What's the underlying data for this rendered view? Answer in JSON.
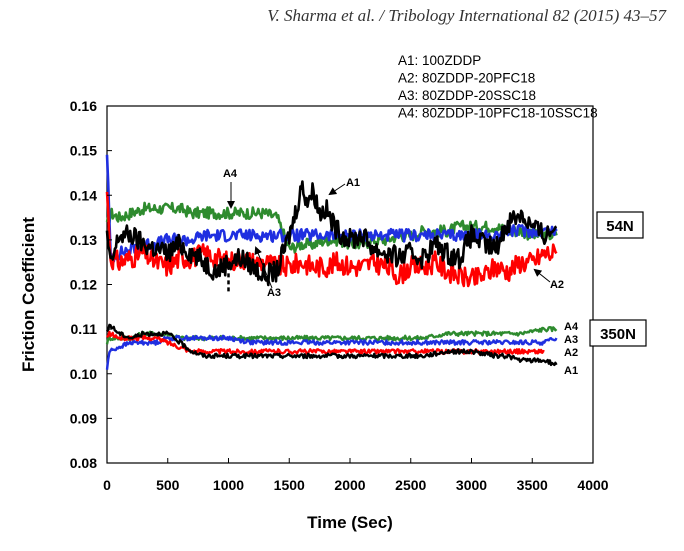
{
  "header": {
    "citation": "V. Sharma et al. / Tribology International 82 (2015) 43–57"
  },
  "chart_data": {
    "type": "line",
    "xlabel": "Time (Sec)",
    "ylabel": "Friction Coefficient",
    "xlim": [
      0,
      4000
    ],
    "ylim": [
      0.08,
      0.16
    ],
    "xticks": [
      "0",
      "500",
      "1000",
      "1500",
      "2000",
      "2500",
      "3000",
      "3500",
      "4000"
    ],
    "yticks": [
      "0.08",
      "0.09",
      "0.10",
      "0.11",
      "0.12",
      "0.13",
      "0.14",
      "0.15",
      "0.16"
    ],
    "grid": false,
    "legend": {
      "placement": "top-right",
      "entries": [
        "A1: 100ZDDP",
        "A2: 80ZDDP-20PFC18",
        "A3: 80ZDDP-20SSC18",
        "A4: 80ZDDP-10PFC18-10SSC18"
      ]
    },
    "load_labels": [
      "54N",
      "350N"
    ],
    "series_colors": {
      "A1": "#000000",
      "A2": "#ff0000",
      "A3": "#1f2fe0",
      "A4": "#2e8b2e"
    },
    "groups": [
      {
        "load": "54N",
        "series": [
          {
            "name": "A1",
            "x": [
              0,
              30,
              100,
              200,
              300,
              400,
              500,
              600,
              700,
              800,
              900,
              1000,
              1100,
              1200,
              1300,
              1400,
              1500,
              1550,
              1600,
              1650,
              1700,
              1750,
              1800,
              1850,
              1900,
              2000,
              2100,
              2200,
              2300,
              2400,
              2500,
              2600,
              2700,
              2800,
              2900,
              3000,
              3100,
              3200,
              3300,
              3400,
              3500,
              3600,
              3700
            ],
            "y": [
              0.131,
              0.124,
              0.131,
              0.131,
              0.129,
              0.128,
              0.127,
              0.129,
              0.127,
              0.125,
              0.123,
              0.125,
              0.126,
              0.124,
              0.122,
              0.123,
              0.131,
              0.136,
              0.142,
              0.139,
              0.141,
              0.136,
              0.137,
              0.134,
              0.132,
              0.13,
              0.131,
              0.128,
              0.127,
              0.126,
              0.127,
              0.126,
              0.129,
              0.127,
              0.126,
              0.131,
              0.129,
              0.128,
              0.134,
              0.136,
              0.133,
              0.131,
              0.133
            ]
          },
          {
            "name": "A2",
            "x": [
              0,
              30,
              100,
              200,
              300,
              400,
              500,
              600,
              700,
              800,
              900,
              1000,
              1100,
              1200,
              1300,
              1400,
              1500,
              1600,
              1700,
              1800,
              1900,
              2000,
              2100,
              2200,
              2300,
              2400,
              2500,
              2600,
              2700,
              2800,
              2900,
              3000,
              3100,
              3200,
              3300,
              3400,
              3500,
              3600,
              3700
            ],
            "y": [
              0.141,
              0.126,
              0.125,
              0.126,
              0.127,
              0.125,
              0.124,
              0.126,
              0.126,
              0.127,
              0.126,
              0.125,
              0.126,
              0.125,
              0.125,
              0.124,
              0.124,
              0.125,
              0.124,
              0.124,
              0.125,
              0.124,
              0.124,
              0.125,
              0.124,
              0.122,
              0.124,
              0.124,
              0.125,
              0.123,
              0.122,
              0.121,
              0.122,
              0.124,
              0.123,
              0.125,
              0.125,
              0.127,
              0.127
            ]
          },
          {
            "name": "A3",
            "x": [
              0,
              30,
              100,
              200,
              300,
              400,
              500,
              600,
              700,
              800,
              900,
              1000,
              1100,
              1200,
              1300,
              1400,
              1500,
              1600,
              1700,
              1800,
              1900,
              2000,
              2100,
              2200,
              2300,
              2400,
              2500,
              2600,
              2700,
              2800,
              2900,
              3000,
              3100,
              3200,
              3300,
              3400,
              3500,
              3600,
              3700
            ],
            "y": [
              0.15,
              0.126,
              0.127,
              0.128,
              0.129,
              0.129,
              0.13,
              0.13,
              0.13,
              0.131,
              0.131,
              0.131,
              0.131,
              0.131,
              0.131,
              0.131,
              0.131,
              0.131,
              0.131,
              0.131,
              0.131,
              0.131,
              0.131,
              0.131,
              0.131,
              0.131,
              0.131,
              0.131,
              0.131,
              0.131,
              0.131,
              0.131,
              0.131,
              0.131,
              0.132,
              0.132,
              0.132,
              0.132,
              0.132
            ]
          },
          {
            "name": "A4",
            "x": [
              0,
              30,
              100,
              200,
              300,
              400,
              500,
              600,
              700,
              800,
              900,
              1000,
              1100,
              1200,
              1300,
              1400,
              1500,
              1600,
              1700,
              1800,
              1900,
              2000,
              2100,
              2200,
              2300,
              2400,
              2500,
              2600,
              2700,
              2800,
              2900,
              3000,
              3100,
              3200,
              3300,
              3400,
              3500,
              3600,
              3700
            ],
            "y": [
              0.133,
              0.136,
              0.135,
              0.136,
              0.137,
              0.137,
              0.137,
              0.137,
              0.136,
              0.136,
              0.136,
              0.136,
              0.136,
              0.136,
              0.136,
              0.135,
              0.128,
              0.129,
              0.129,
              0.13,
              0.13,
              0.129,
              0.129,
              0.13,
              0.13,
              0.131,
              0.131,
              0.132,
              0.132,
              0.132,
              0.133,
              0.133,
              0.133,
              0.133,
              0.132,
              0.132,
              0.131,
              0.131,
              0.131
            ]
          }
        ]
      },
      {
        "load": "350N",
        "series": [
          {
            "name": "A1",
            "x": [
              0,
              20,
              100,
              200,
              300,
              400,
              500,
              600,
              700,
              800,
              900,
              1000,
              1200,
              1400,
              1600,
              1800,
              2000,
              2200,
              2400,
              2600,
              2800,
              3000,
              3200,
              3300,
              3400,
              3500,
              3600,
              3700
            ],
            "y": [
              0.109,
              0.111,
              0.109,
              0.108,
              0.109,
              0.109,
              0.109,
              0.107,
              0.105,
              0.104,
              0.104,
              0.104,
              0.104,
              0.104,
              0.104,
              0.104,
              0.104,
              0.104,
              0.104,
              0.104,
              0.105,
              0.105,
              0.104,
              0.104,
              0.103,
              0.103,
              0.103,
              0.102
            ]
          },
          {
            "name": "A2",
            "x": [
              0,
              20,
              100,
              200,
              300,
              400,
              500,
              600,
              700,
              800,
              1000,
              1200,
              1400,
              1600,
              1800,
              2000,
              2200,
              2400,
              2600,
              2800,
              3000,
              3200,
              3400,
              3600
            ],
            "y": [
              0.108,
              0.109,
              0.108,
              0.108,
              0.108,
              0.108,
              0.107,
              0.106,
              0.105,
              0.105,
              0.105,
              0.105,
              0.105,
              0.105,
              0.105,
              0.105,
              0.105,
              0.105,
              0.105,
              0.105,
              0.105,
              0.105,
              0.105,
              0.105
            ]
          },
          {
            "name": "A3",
            "x": [
              0,
              20,
              100,
              200,
              300,
              400,
              500,
              600,
              800,
              1000,
              1200,
              1400,
              1600,
              1800,
              2000,
              2200,
              2400,
              2600,
              2800,
              3000,
              3200,
              3400,
              3600,
              3700
            ],
            "y": [
              0.101,
              0.105,
              0.106,
              0.107,
              0.107,
              0.107,
              0.108,
              0.108,
              0.108,
              0.108,
              0.107,
              0.107,
              0.107,
              0.107,
              0.107,
              0.107,
              0.107,
              0.107,
              0.107,
              0.107,
              0.107,
              0.107,
              0.107,
              0.108
            ]
          },
          {
            "name": "A4",
            "x": [
              0,
              20,
              100,
              200,
              300,
              400,
              500,
              600,
              800,
              1000,
              1200,
              1400,
              1600,
              1800,
              2000,
              2200,
              2400,
              2600,
              2800,
              3000,
              3200,
              3400,
              3600,
              3700
            ],
            "y": [
              0.107,
              0.108,
              0.108,
              0.108,
              0.109,
              0.109,
              0.109,
              0.108,
              0.108,
              0.108,
              0.108,
              0.108,
              0.108,
              0.108,
              0.108,
              0.108,
              0.108,
              0.108,
              0.109,
              0.109,
              0.109,
              0.109,
              0.11,
              0.11
            ]
          }
        ]
      }
    ],
    "annotations": [
      {
        "text": "A4",
        "x": 1000,
        "y": 0.136,
        "group": "54N"
      },
      {
        "text": "A1",
        "x": 1720,
        "y": 0.139,
        "group": "54N"
      },
      {
        "text": "A3",
        "x": 1150,
        "y": 0.129,
        "group": "54N"
      },
      {
        "text": "A2",
        "x": 3530,
        "y": 0.123,
        "group": "54N"
      }
    ],
    "end_labels": [
      "A4",
      "A3",
      "A2",
      "A1"
    ]
  }
}
